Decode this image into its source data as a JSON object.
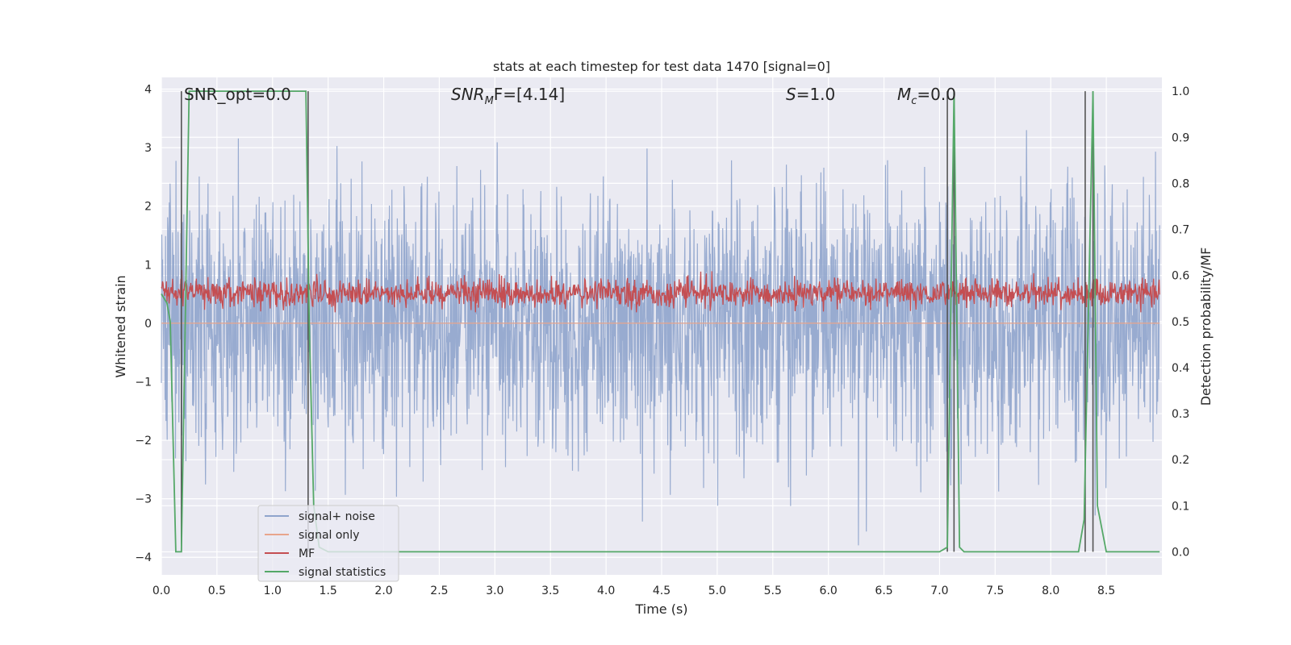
{
  "chart_data": {
    "type": "line",
    "title": "stats at each timestep for test data 1470 [signal=0]",
    "xlabel": "Time (s)",
    "ylabel": "Whitened strain",
    "y2label": "Detection probability/MF",
    "xlim": [
      0.0,
      9.0
    ],
    "ylim": [
      -4.3,
      4.2
    ],
    "y2lim": [
      -0.05,
      1.03
    ],
    "xticks": [
      "0.0",
      "0.5",
      "1.0",
      "1.5",
      "2.0",
      "2.5",
      "3.0",
      "3.5",
      "4.0",
      "4.5",
      "5.0",
      "5.5",
      "6.0",
      "6.5",
      "7.0",
      "7.5",
      "8.0",
      "8.5"
    ],
    "yticks": [
      "4",
      "3",
      "2",
      "1",
      "0",
      "−1",
      "−2",
      "−3",
      "−4"
    ],
    "y2ticks": [
      "1.0",
      "0.9",
      "0.8",
      "0.7",
      "0.6",
      "0.5",
      "0.4",
      "0.3",
      "0.2",
      "0.1",
      "0.0"
    ],
    "grid": true,
    "legend_position": "lower-left",
    "annotations": {
      "snr_opt": "SNR_opt=0.0",
      "snr_mf_symbol": "SNR",
      "snr_mf_sub": "M",
      "snr_mf_rest": "F=[4.14]",
      "s_symbol": "S",
      "s_rest": "=1.0",
      "mc_symbol": "M",
      "mc_sub": "c",
      "mc_rest": "=0.0"
    },
    "series": [
      {
        "name": "signal+ noise",
        "color": "#8fa4cc",
        "description": "noisy whitened strain, approx. range -4 to 4"
      },
      {
        "name": "signal only",
        "color": "#e8a58c",
        "values": "zero (no signal)"
      },
      {
        "name": "MF",
        "color": "#c44e52",
        "range_right_axis": [
          0.52,
          0.64
        ]
      },
      {
        "name": "signal statistics",
        "color": "#55a868",
        "x": [
          0.0,
          0.05,
          0.08,
          0.13,
          0.18,
          0.25,
          1.3,
          1.33,
          1.37,
          1.42,
          1.5,
          7.0,
          7.07,
          7.13,
          7.18,
          7.22,
          7.3,
          8.25,
          8.3,
          8.38,
          8.42,
          8.5,
          8.98
        ],
        "values": [
          0.56,
          0.54,
          0.5,
          0.0,
          0.0,
          1.0,
          1.0,
          0.5,
          0.1,
          0.01,
          0.0,
          0.0,
          0.01,
          1.0,
          0.01,
          0.0,
          0.0,
          0.0,
          0.07,
          1.0,
          0.1,
          0.0,
          0.0
        ]
      }
    ],
    "vertical_markers": [
      0.18,
      1.32,
      7.07,
      7.13,
      8.31,
      8.38
    ],
    "marker_color": "#555555"
  }
}
